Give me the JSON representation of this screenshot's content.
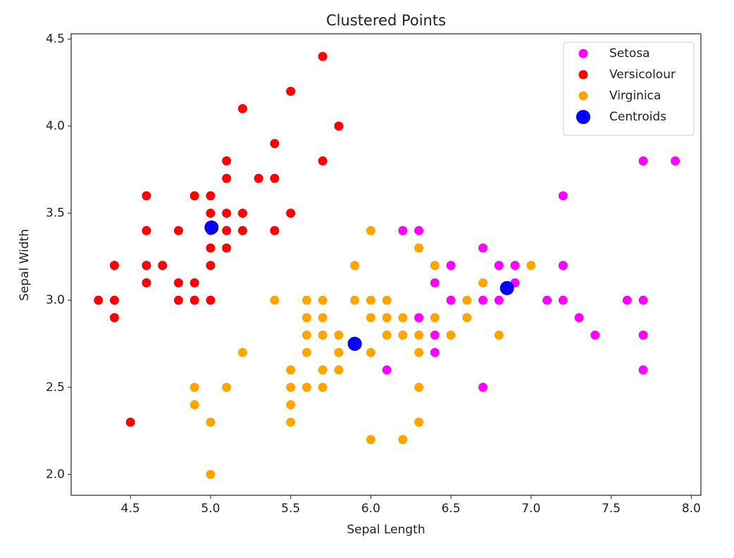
{
  "chart_data": {
    "type": "scatter",
    "title": "Clustered Points",
    "x_label": "Sepal Length",
    "y_label": "Sepal Width",
    "xlim": [
      4.13,
      8.06
    ],
    "ylim": [
      1.88,
      4.53
    ],
    "xticks": [
      4.5,
      {
        "value": 5,
        "label": "5.0"
      },
      5.5,
      {
        "value": 6,
        "label": "6.0"
      },
      6.5,
      {
        "value": 7,
        "label": "7.0"
      },
      7.5,
      {
        "value": 8,
        "label": "8.0"
      }
    ],
    "yticks": [
      {
        "value": 2,
        "label": "2.0"
      },
      2.5,
      {
        "value": 3,
        "label": "3.0"
      },
      3.5,
      {
        "value": 4,
        "label": "4.0"
      },
      4.5
    ],
    "legend": "upper right",
    "series": [
      {
        "name": "Setosa",
        "color": "#ff00ff",
        "x": [
          6.1,
          6.2,
          6.3,
          6.3,
          6.4,
          6.4,
          6.4,
          6.5,
          6.5,
          6.7,
          6.7,
          6.7,
          6.8,
          6.8,
          6.9,
          6.9,
          7.1,
          7.2,
          7.2,
          7.2,
          7.3,
          7.4,
          7.6,
          7.7,
          7.7,
          7.7,
          7.7,
          7.9
        ],
        "y": [
          2.6,
          3.4,
          3.4,
          2.9,
          3.1,
          2.8,
          2.7,
          3.2,
          3.0,
          3.3,
          3.0,
          2.5,
          3.2,
          3.0,
          3.2,
          3.1,
          3.0,
          3.6,
          3.2,
          3.0,
          2.9,
          2.8,
          3.0,
          3.8,
          3.0,
          2.8,
          2.6,
          3.8
        ]
      },
      {
        "name": "Versicolour",
        "color": "#ff0000",
        "x": [
          4.3,
          4.4,
          4.4,
          4.4,
          4.5,
          4.6,
          4.6,
          4.6,
          4.6,
          4.7,
          4.8,
          4.8,
          4.8,
          4.9,
          4.9,
          4.9,
          5.0,
          5.0,
          5.0,
          5.0,
          5.0,
          5.0,
          5.1,
          5.1,
          5.1,
          5.1,
          5.1,
          5.2,
          5.2,
          5.2,
          5.3,
          5.4,
          5.4,
          5.4,
          5.5,
          5.5,
          5.7,
          5.7,
          5.8
        ],
        "y": [
          3.0,
          3.2,
          3.0,
          2.9,
          2.3,
          3.6,
          3.4,
          3.2,
          3.1,
          3.2,
          3.4,
          3.1,
          3.0,
          3.6,
          3.1,
          3.0,
          3.6,
          3.5,
          3.4,
          3.3,
          3.2,
          3.0,
          3.8,
          3.7,
          3.5,
          3.4,
          3.3,
          4.1,
          3.5,
          3.4,
          3.7,
          3.9,
          3.7,
          3.4,
          4.2,
          3.5,
          4.4,
          3.8,
          4.0
        ]
      },
      {
        "name": "Virginica",
        "color": "#ffa500",
        "x": [
          4.9,
          4.9,
          5.0,
          5.0,
          5.1,
          5.2,
          5.4,
          5.5,
          5.5,
          5.5,
          5.5,
          5.6,
          5.6,
          5.6,
          5.6,
          5.6,
          5.7,
          5.7,
          5.7,
          5.7,
          5.7,
          5.8,
          5.8,
          5.8,
          5.9,
          5.9,
          6.0,
          6.0,
          6.0,
          6.0,
          6.0,
          6.1,
          6.1,
          6.1,
          6.2,
          6.2,
          6.2,
          6.3,
          6.3,
          6.3,
          6.3,
          6.3,
          6.4,
          6.4,
          6.5,
          6.6,
          6.6,
          6.7,
          6.8,
          7.0
        ],
        "y": [
          2.5,
          2.4,
          2.3,
          2.0,
          2.5,
          2.7,
          3.0,
          2.6,
          2.5,
          2.4,
          2.3,
          3.0,
          2.9,
          2.8,
          2.7,
          2.5,
          3.0,
          2.9,
          2.8,
          2.6,
          2.5,
          2.8,
          2.7,
          2.6,
          3.2,
          3.0,
          3.4,
          3.0,
          2.9,
          2.7,
          2.2,
          3.0,
          2.9,
          2.8,
          2.9,
          2.8,
          2.2,
          3.3,
          2.8,
          2.7,
          2.5,
          2.3,
          3.2,
          2.9,
          2.8,
          3.0,
          2.9,
          3.1,
          2.8,
          3.2
        ]
      },
      {
        "name": "Centroids",
        "color": "#0000ff",
        "x": [
          5.006,
          5.9,
          6.85
        ],
        "y": [
          3.418,
          2.75,
          3.07
        ]
      }
    ]
  }
}
